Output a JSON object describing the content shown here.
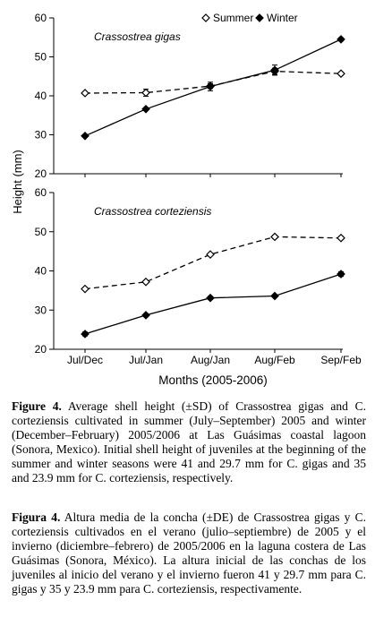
{
  "chart_data": [
    {
      "type": "line",
      "title": "Crassostrea gigas",
      "categories": [
        "Jul/Dec",
        "Jul/Jan",
        "Aug/Jan",
        "Aug/Feb",
        "Sep/Feb"
      ],
      "ylim": [
        20,
        60
      ],
      "yticks": [
        20,
        30,
        40,
        50,
        60
      ],
      "series": [
        {
          "name": "Summer",
          "marker": "open-diamond",
          "style": "dashed",
          "values": [
            40.7,
            40.8,
            42.5,
            46.3,
            45.7
          ],
          "sd": [
            0.3,
            0.9,
            0.6,
            0.8,
            0.4
          ]
        },
        {
          "name": "Winter",
          "marker": "filled-diamond",
          "style": "solid",
          "values": [
            29.7,
            36.6,
            42.4,
            46.6,
            54.5
          ],
          "sd": [
            0.2,
            0.3,
            1.1,
            1.3,
            0.4
          ]
        }
      ]
    },
    {
      "type": "line",
      "title": "Crassostrea corteziensis",
      "categories": [
        "Jul/Dec",
        "Jul/Jan",
        "Aug/Jan",
        "Aug/Feb",
        "Sep/Feb"
      ],
      "ylim": [
        20,
        60
      ],
      "yticks": [
        20,
        30,
        40,
        50,
        60
      ],
      "series": [
        {
          "name": "Summer",
          "marker": "open-diamond",
          "style": "dashed",
          "values": [
            35.4,
            37.2,
            44.2,
            48.7,
            48.4
          ],
          "sd": [
            0.3,
            0.3,
            0.3,
            0.4,
            0.4
          ]
        },
        {
          "name": "Winter",
          "marker": "filled-diamond",
          "style": "solid",
          "values": [
            23.9,
            28.7,
            33.1,
            33.6,
            39.2
          ],
          "sd": [
            0.5,
            0.4,
            0.4,
            0.3,
            0.6
          ]
        }
      ]
    }
  ],
  "axes": {
    "ylabel": "Height (mm)",
    "xlabel": "Months (2005-2006)"
  },
  "legend": {
    "summer": "Summer",
    "winter": "Winter"
  },
  "caption_en": {
    "label": "Figure 4.",
    "text": " Average shell height (±SD) of Crassostrea gigas and C. corteziensis cultivated in summer (July–September) 2005 and winter (December–February) 2005/2006 at Las Guásimas coastal lagoon (Sonora, Mexico). Initial shell height of juveniles at the beginning of the summer and winter seasons were 41 and 29.7 mm for C. gigas and 35 and 23.9 mm for C. corteziensis, respectively."
  },
  "caption_es": {
    "label": "Figura 4.",
    "text": " Altura media de la concha (±DE) de Crassostrea gigas y C. corteziensis cultivados en el verano (julio–septiembre) de 2005 y el invierno (diciembre–febrero) de 2005/2006 en la laguna costera de Las Guásimas (Sonora, México). La altura inicial de las conchas de los juveniles al inicio del verano y el invierno fueron 41 y 29.7 mm para C. gigas y 35 y 23.9 mm para C. corteziensis, respectivamente."
  }
}
